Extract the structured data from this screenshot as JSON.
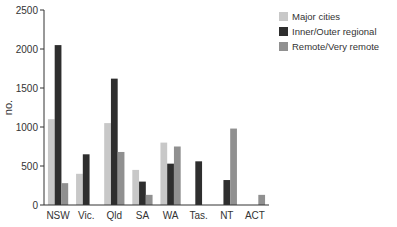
{
  "chart_data": {
    "type": "bar",
    "categories": [
      "NSW",
      "Vic.",
      "Qld",
      "SA",
      "WA",
      "Tas.",
      "NT",
      "ACT"
    ],
    "series": [
      {
        "name": "Major cities",
        "color": "#c8c8c8",
        "values": [
          1100,
          400,
          1050,
          450,
          800,
          0,
          0,
          0
        ]
      },
      {
        "name": "Inner/Outer regional",
        "color": "#2e2e2e",
        "values": [
          2050,
          650,
          1620,
          300,
          530,
          560,
          320,
          0
        ]
      },
      {
        "name": "Remote/Very remote",
        "color": "#909090",
        "values": [
          280,
          0,
          680,
          130,
          750,
          0,
          980,
          130
        ]
      }
    ],
    "y_label": "no.",
    "ylim": [
      0,
      2500
    ],
    "yticks": [
      0,
      500,
      1000,
      1500,
      2000,
      2500
    ],
    "grid": false,
    "legend": "right"
  }
}
